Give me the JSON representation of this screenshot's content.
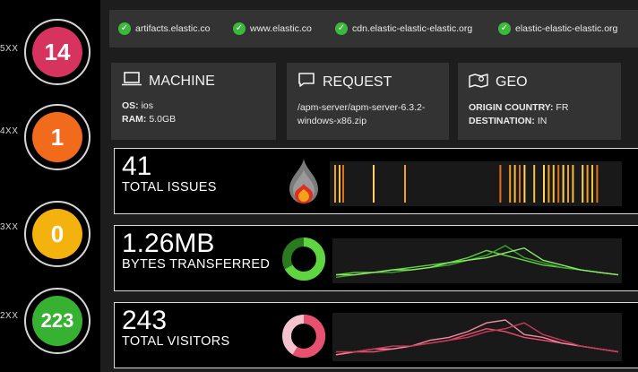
{
  "status_codes": [
    {
      "code": "5XX",
      "count": "14",
      "color": "#d6335f"
    },
    {
      "code": "4XX",
      "count": "1",
      "color": "#f26b1d"
    },
    {
      "code": "3XX",
      "count": "0",
      "color": "#f4b20f"
    },
    {
      "code": "2XX",
      "count": "223",
      "color": "#37b131"
    }
  ],
  "domains": [
    "artifacts.elastic.co",
    "www.elastic.co",
    "cdn.elastic-elastic-elastic.org",
    "elastic-elastic-elastic.org"
  ],
  "panels": {
    "machine": {
      "title": "MACHINE",
      "icon": "laptop-icon",
      "os_label": "OS:",
      "os_value": "ios",
      "ram_label": "RAM:",
      "ram_value": "5.0GB"
    },
    "request": {
      "title": "REQUEST",
      "icon": "speech-bubble-icon",
      "path": "/apm-server/apm-server-6.3.2-windows-x86.zip"
    },
    "geo": {
      "title": "GEO",
      "icon": "map-pin-icon",
      "origin_label": "ORIGIN COUNTRY:",
      "origin_value": "FR",
      "dest_label": "DESTINATION:",
      "dest_value": "IN"
    }
  },
  "metrics": [
    {
      "value": "41",
      "label": "TOTAL ISSUES",
      "icon": "flame-icon",
      "accent": "#f0a020"
    },
    {
      "value": "1.26MB",
      "label": "BYTES TRANSFERRED",
      "icon": "donut-icon",
      "accent": "#55cc3a"
    },
    {
      "value": "243",
      "label": "TOTAL VISITORS",
      "icon": "donut-icon",
      "accent": "#e85a7a"
    }
  ],
  "chart_data": [
    {
      "type": "bar",
      "series": [
        {
          "values": [
            1,
            1,
            0,
            1,
            0,
            0,
            1,
            0,
            1,
            1,
            1,
            1,
            0,
            1,
            0,
            1,
            1,
            1,
            1,
            1,
            1,
            1,
            0,
            1,
            1,
            1,
            1
          ]
        }
      ]
    },
    {
      "type": "line",
      "series": [
        {
          "values": [
            2,
            3,
            3,
            4,
            5,
            6,
            7,
            9,
            12,
            10,
            8,
            6,
            5,
            4,
            3,
            2
          ]
        },
        {
          "values": [
            1,
            2,
            3,
            3,
            4,
            5,
            6,
            8,
            10,
            14,
            9,
            7,
            5,
            4,
            3,
            2
          ]
        },
        {
          "values": [
            2,
            2,
            3,
            4,
            4,
            5,
            7,
            8,
            9,
            11,
            13,
            8,
            6,
            4,
            3,
            2
          ]
        }
      ]
    },
    {
      "type": "line",
      "series": [
        {
          "values": [
            1,
            2,
            2,
            3,
            4,
            5,
            6,
            8,
            10,
            9,
            7,
            6,
            5,
            4,
            3,
            2
          ]
        },
        {
          "values": [
            1,
            2,
            3,
            3,
            4,
            6,
            7,
            9,
            12,
            13,
            8,
            7,
            5,
            4,
            3,
            2
          ]
        },
        {
          "values": [
            2,
            2,
            3,
            4,
            4,
            5,
            6,
            7,
            9,
            10,
            12,
            8,
            6,
            4,
            3,
            2
          ]
        }
      ]
    }
  ]
}
